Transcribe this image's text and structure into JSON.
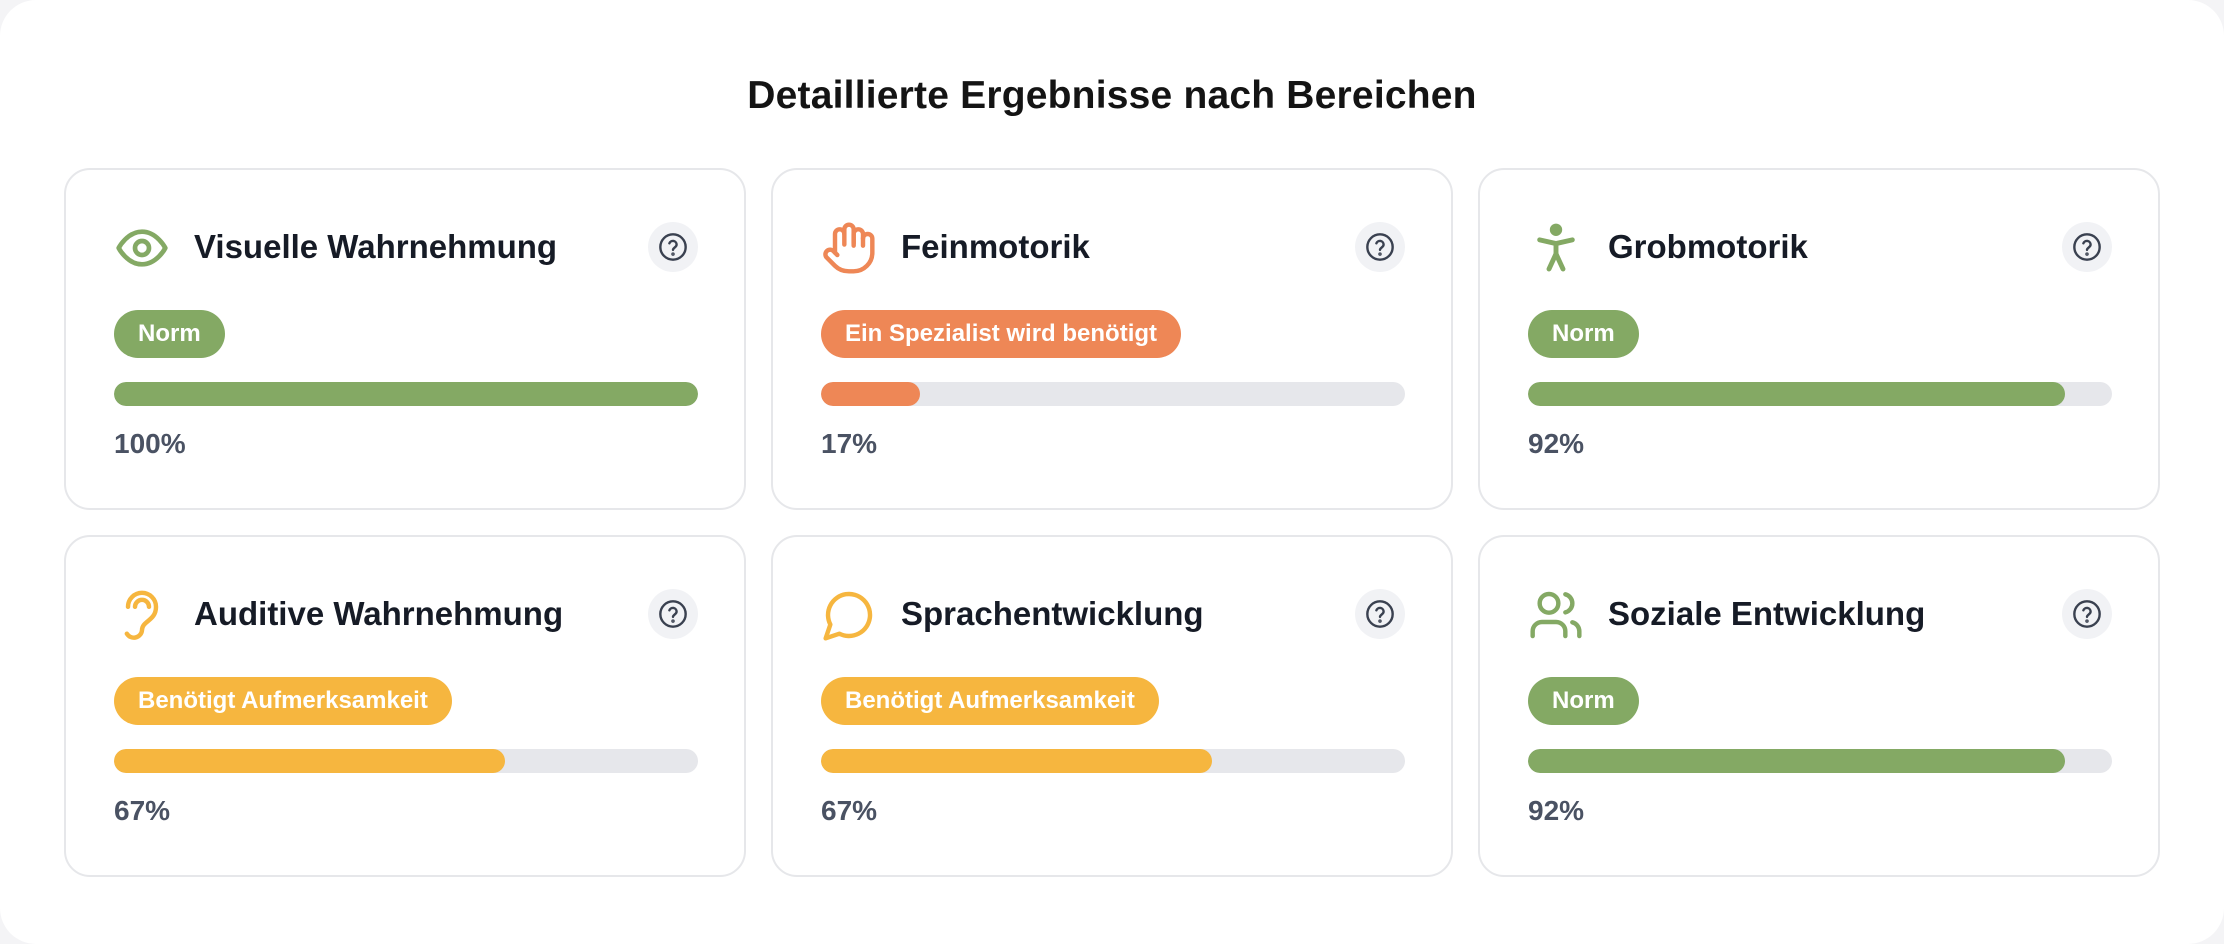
{
  "page": {
    "title": "Detaillierte Ergebnisse nach Bereichen"
  },
  "colors": {
    "norm": "#84a964",
    "specialist": "#ee8756",
    "attention": "#f6b63f",
    "track": "#e6e7eb",
    "help_bg": "#f1f2f5",
    "help_icon": "#3a4150"
  },
  "cards": [
    {
      "title": "Visuelle Wahrnehmung",
      "icon": "eye-icon",
      "status": "Norm",
      "status_type": "norm",
      "progress": 1.0,
      "percent_label": "100%"
    },
    {
      "title": "Feinmotorik",
      "icon": "hand-icon",
      "status": "Ein Spezialist wird benötigt",
      "status_type": "specialist",
      "progress": 0.17,
      "percent_label": "17%"
    },
    {
      "title": "Grobmotorik",
      "icon": "person-icon",
      "status": "Norm",
      "status_type": "norm",
      "progress": 0.92,
      "percent_label": "92%"
    },
    {
      "title": "Auditive Wahrnehmung",
      "icon": "ear-icon",
      "status": "Benötigt Aufmerksamkeit",
      "status_type": "attention",
      "progress": 0.67,
      "percent_label": "67%"
    },
    {
      "title": "Sprachentwicklung",
      "icon": "speech-bubble-icon",
      "status": "Benötigt Aufmerksamkeit",
      "status_type": "attention",
      "progress": 0.67,
      "percent_label": "67%"
    },
    {
      "title": "Soziale Entwicklung",
      "icon": "users-icon",
      "status": "Norm",
      "status_type": "norm",
      "progress": 0.92,
      "percent_label": "92%"
    }
  ]
}
